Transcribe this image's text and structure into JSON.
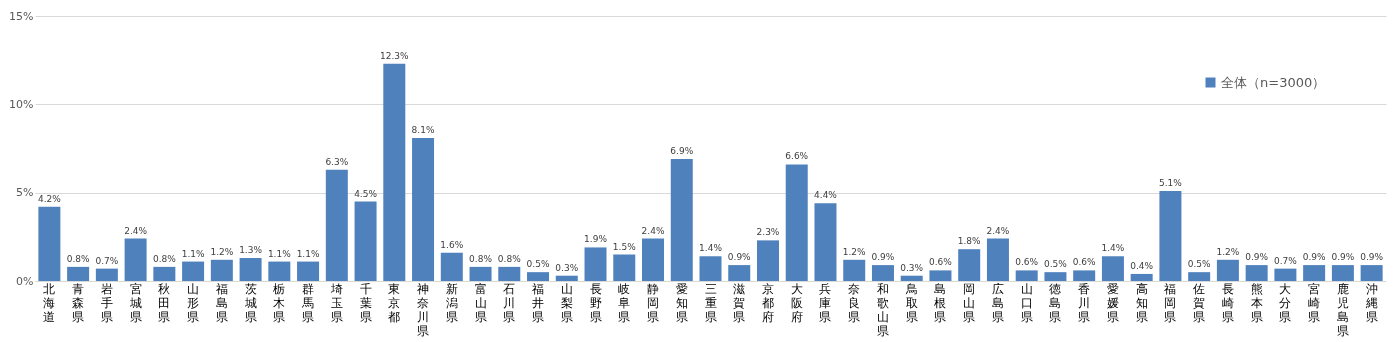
{
  "chart_data": {
    "type": "bar",
    "categories": [
      "北海道",
      "青森県",
      "岩手県",
      "宮城県",
      "秋田県",
      "山形県",
      "福島県",
      "茨城県",
      "栃木県",
      "群馬県",
      "埼玉県",
      "千葉県",
      "東京都",
      "神奈川県",
      "新潟県",
      "富山県",
      "石川県",
      "福井県",
      "山梨県",
      "長野県",
      "岐阜県",
      "静岡県",
      "愛知県",
      "三重県",
      "滋賀県",
      "京都府",
      "大阪府",
      "兵庫県",
      "奈良県",
      "和歌山県",
      "鳥取県",
      "島根県",
      "岡山県",
      "広島県",
      "山口県",
      "徳島県",
      "香川県",
      "愛媛県",
      "高知県",
      "福岡県",
      "佐賀県",
      "長崎県",
      "熊本県",
      "大分県",
      "宮崎県",
      "鹿児島県",
      "沖縄県"
    ],
    "series": [
      {
        "name": "全体（n=3000）",
        "color": "#4f81bd",
        "values": [
          4.2,
          0.8,
          0.7,
          2.4,
          0.8,
          1.1,
          1.2,
          1.3,
          1.1,
          1.1,
          6.3,
          4.5,
          12.3,
          8.1,
          1.6,
          0.8,
          0.8,
          0.5,
          0.3,
          1.9,
          1.5,
          2.4,
          6.9,
          1.4,
          0.9,
          2.3,
          6.6,
          4.4,
          1.2,
          0.9,
          0.3,
          0.6,
          1.8,
          2.4,
          0.6,
          0.5,
          0.6,
          1.4,
          0.4,
          5.1,
          0.5,
          1.2,
          0.9,
          0.7,
          0.9,
          0.9,
          0.9
        ],
        "value_labels": [
          "4.2%",
          "0.8%",
          "0.7%",
          "2.4%",
          "0.8%",
          "1.1%",
          "1.2%",
          "1.3%",
          "1.1%",
          "1.1%",
          "6.3%",
          "4.5%",
          "12.3%",
          "8.1%",
          "1.6%",
          "0.8%",
          "0.8%",
          "0.5%",
          "0.3%",
          "1.9%",
          "1.5%",
          "2.4%",
          "6.9%",
          "1.4%",
          "0.9%",
          "2.3%",
          "6.6%",
          "4.4%",
          "1.2%",
          "0.9%",
          "0.3%",
          "0.6%",
          "1.8%",
          "2.4%",
          "0.6%",
          "0.5%",
          "0.6%",
          "1.4%",
          "0.4%",
          "5.1%",
          "0.5%",
          "1.2%",
          "0.9%",
          "0.7%",
          "0.9%",
          "0.9%",
          "0.9%"
        ]
      }
    ],
    "ylim": [
      0,
      15
    ],
    "yticks": [
      {
        "value": 0,
        "label": "0%"
      },
      {
        "value": 5,
        "label": "5%"
      },
      {
        "value": 10,
        "label": "10%"
      },
      {
        "value": 15,
        "label": "15%"
      }
    ],
    "grid": "y",
    "legend": "top right"
  }
}
